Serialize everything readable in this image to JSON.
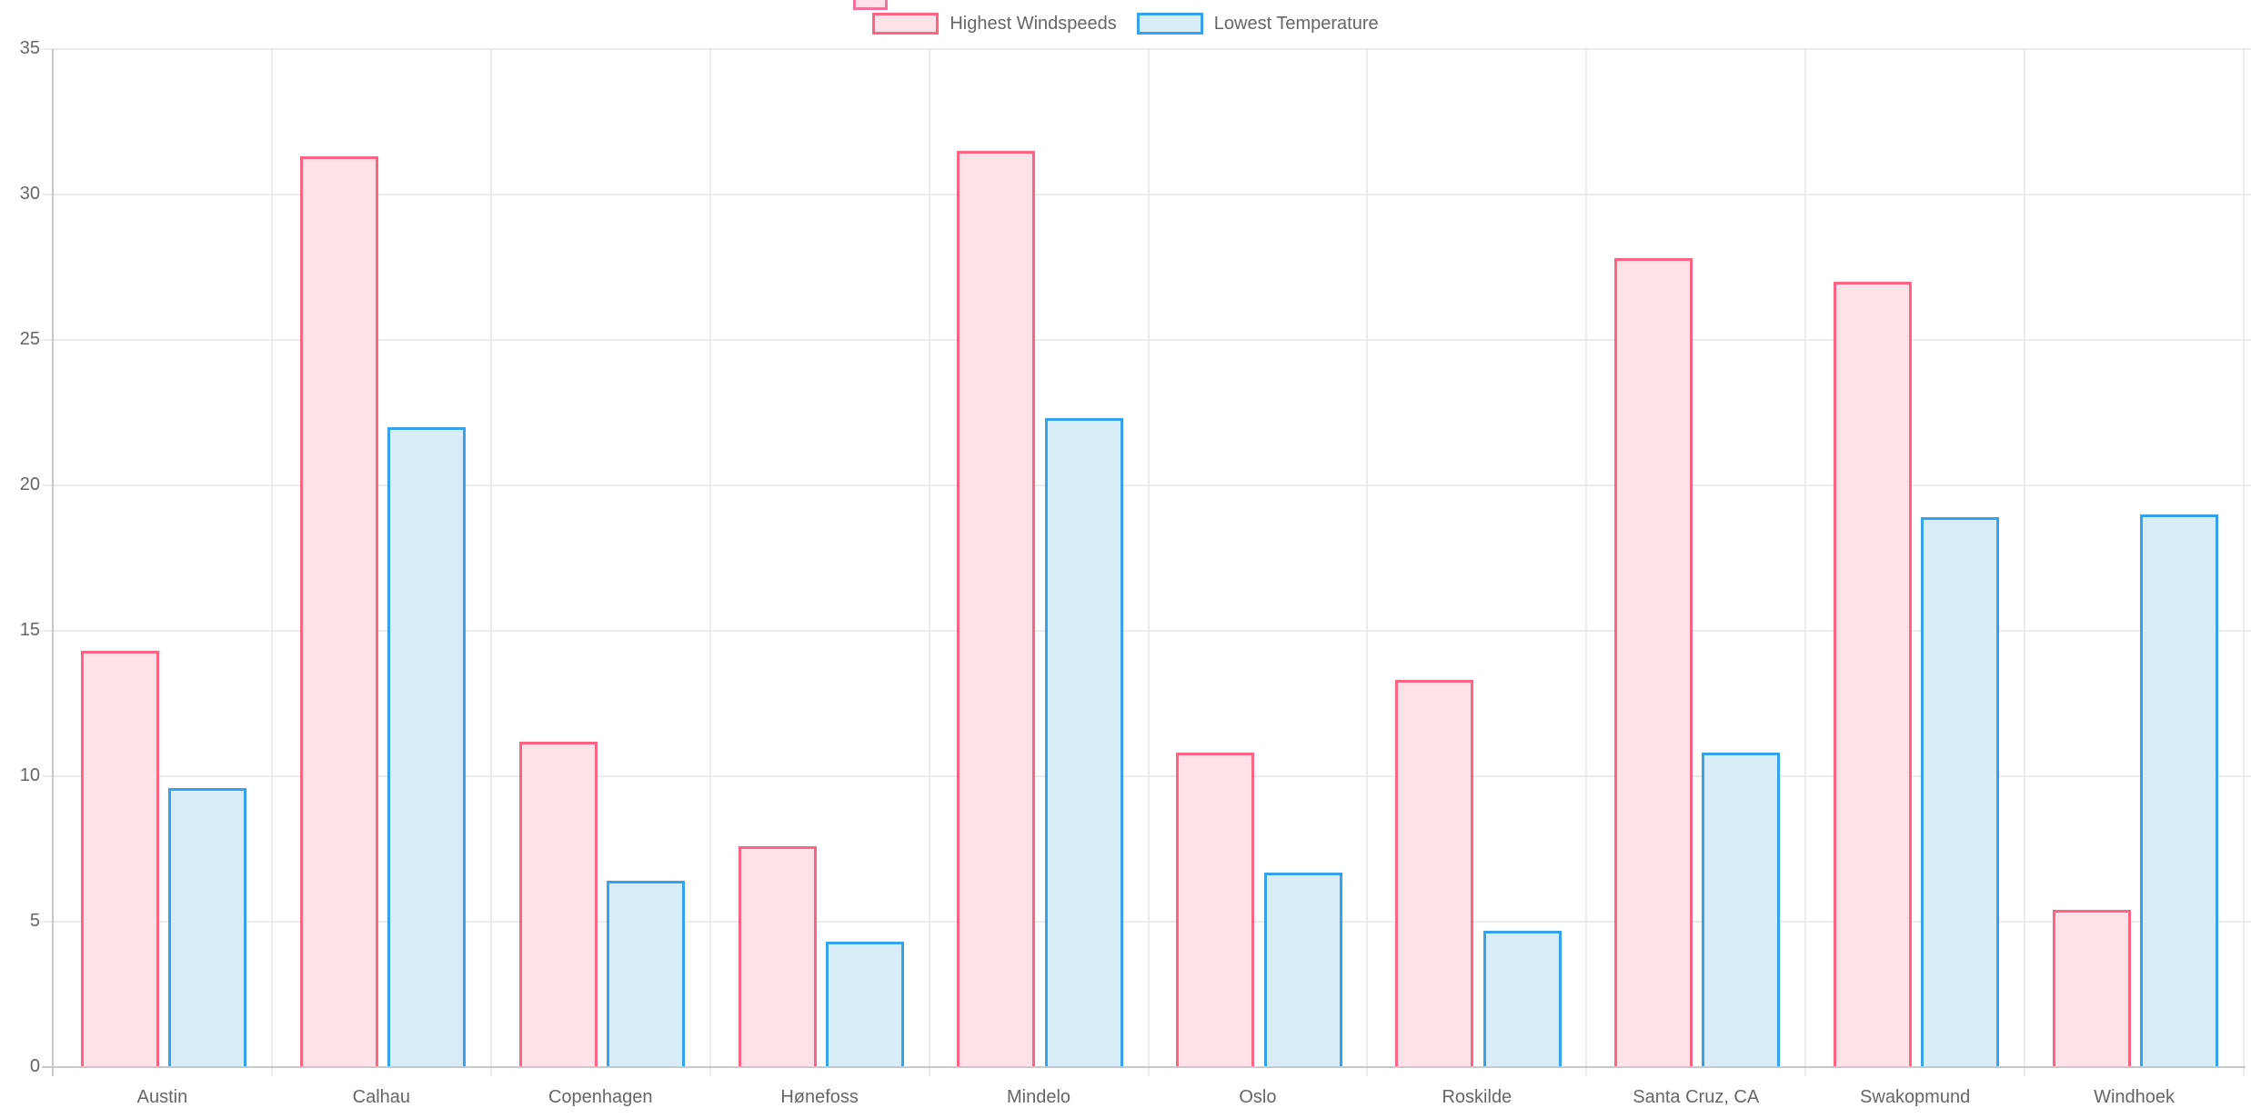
{
  "legend": {
    "items": [
      {
        "label": "Highest Windspeeds"
      },
      {
        "label": "Lowest Temperature"
      }
    ]
  },
  "chart_data": {
    "type": "bar",
    "title": "",
    "xlabel": "",
    "ylabel": "",
    "categories": [
      "Austin",
      "Calhau",
      "Copenhagen",
      "Hønefoss",
      "Mindelo",
      "Oslo",
      "Roskilde",
      "Santa Cruz, CA",
      "Swakopmund",
      "Windhoek"
    ],
    "series": [
      {
        "name": "Highest Windspeeds",
        "values": [
          14.3,
          31.3,
          11.2,
          7.6,
          31.5,
          10.8,
          13.3,
          27.8,
          27.0,
          5.4
        ],
        "fill": "#ffe1e8",
        "border": "#ff6384"
      },
      {
        "name": "Lowest Temperature",
        "values": [
          9.6,
          22.0,
          6.4,
          4.3,
          22.3,
          6.7,
          4.7,
          10.8,
          18.9,
          19.0
        ],
        "fill": "#d9ecfa",
        "border": "#36a2eb"
      }
    ],
    "ylim": [
      0,
      35
    ],
    "y_ticks": [
      0,
      5,
      10,
      15,
      20,
      25,
      30,
      35
    ],
    "grid": true,
    "legend_position": "top"
  },
  "colors": {
    "axis_text": "#666666",
    "grid_line": "#ebebeb",
    "axis_line": "#c9c9c9",
    "windspeed_fill": "#ffe1e8",
    "windspeed_border": "#ff6384",
    "temperature_fill": "#d9ecfa",
    "temperature_border": "#36a2eb"
  }
}
